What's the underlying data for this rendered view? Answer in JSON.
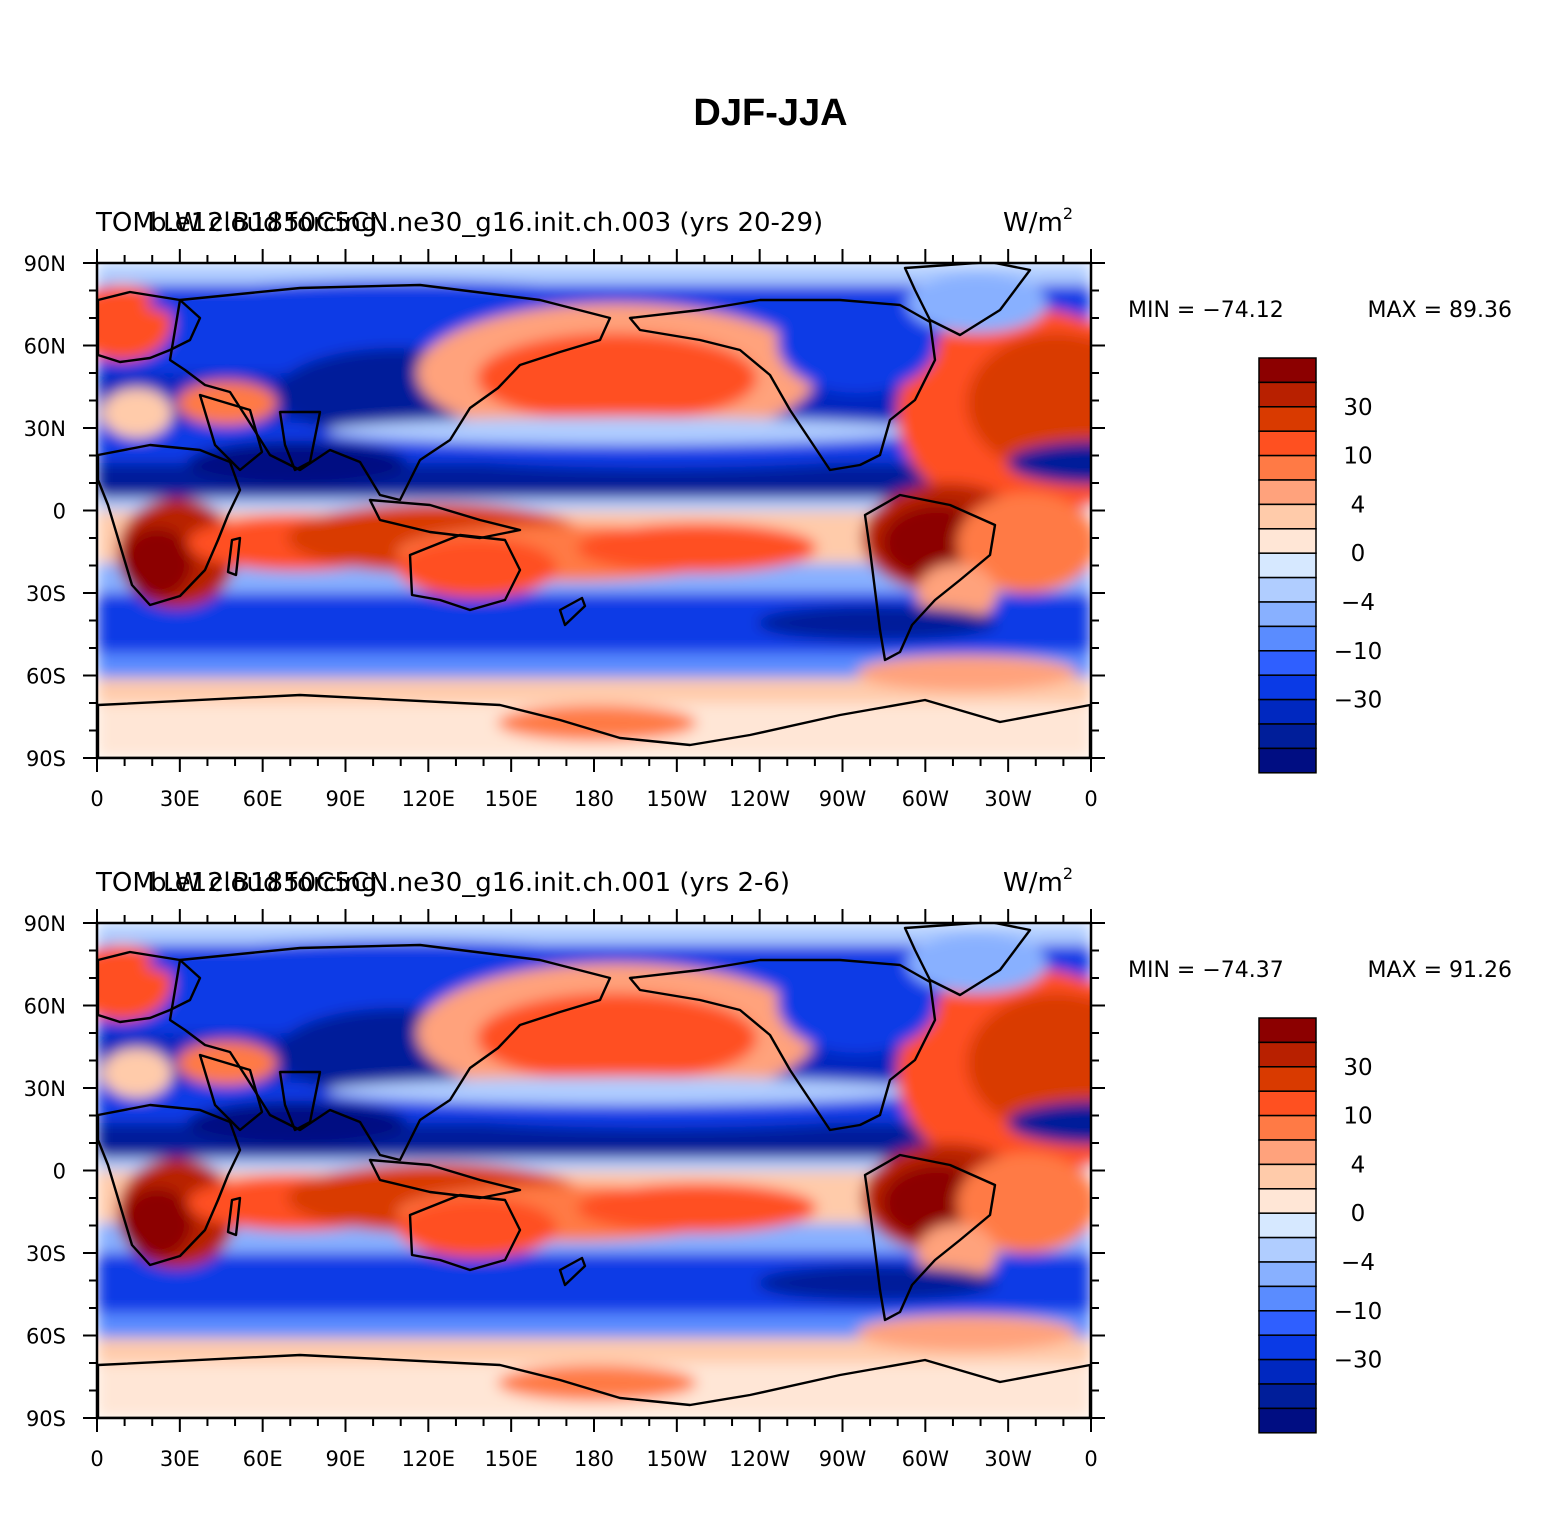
{
  "title": "DJF-JJA",
  "panels": [
    {
      "left_title": "TOM LW cloud forcing",
      "center_title": "b.e12.B1850C5CN.ne30_g16.init.ch.003 (yrs 20-29)",
      "units": "W/m",
      "units_sup": "2",
      "min_label": "MIN = −74.12",
      "max_label": "MAX =  89.36",
      "min_value": -74.12,
      "max_value": 89.36
    },
    {
      "left_title": "TOM LW cloud forcing",
      "center_title": "b.e12.B1850C5CN.ne30_g16.init.ch.001 (yrs 2-6)",
      "units": "W/m",
      "units_sup": "2",
      "min_label": "MIN = −74.37",
      "max_label": "MAX =  91.26",
      "min_value": -74.37,
      "max_value": 91.26
    }
  ],
  "lat_labels": [
    "90N",
    "60N",
    "30N",
    "0",
    "30S",
    "60S",
    "90S"
  ],
  "lon_labels": [
    "0",
    "30E",
    "60E",
    "90E",
    "120E",
    "150E",
    "180",
    "150W",
    "120W",
    "90W",
    "60W",
    "30W",
    "0"
  ],
  "colorbar": {
    "labels": [
      "30",
      "10",
      "4",
      "0",
      "−4",
      "−10",
      "−30"
    ],
    "colors": [
      "#8c0000",
      "#b82000",
      "#d93a00",
      "#ff5020",
      "#ff7a45",
      "#ffa27c",
      "#ffcbaa",
      "#ffe6d6",
      "#d6e8ff",
      "#b0cdff",
      "#88b0ff",
      "#5a8cff",
      "#2f5fff",
      "#0a3ae6",
      "#0028c0",
      "#001e9a",
      "#000d82"
    ]
  }
}
